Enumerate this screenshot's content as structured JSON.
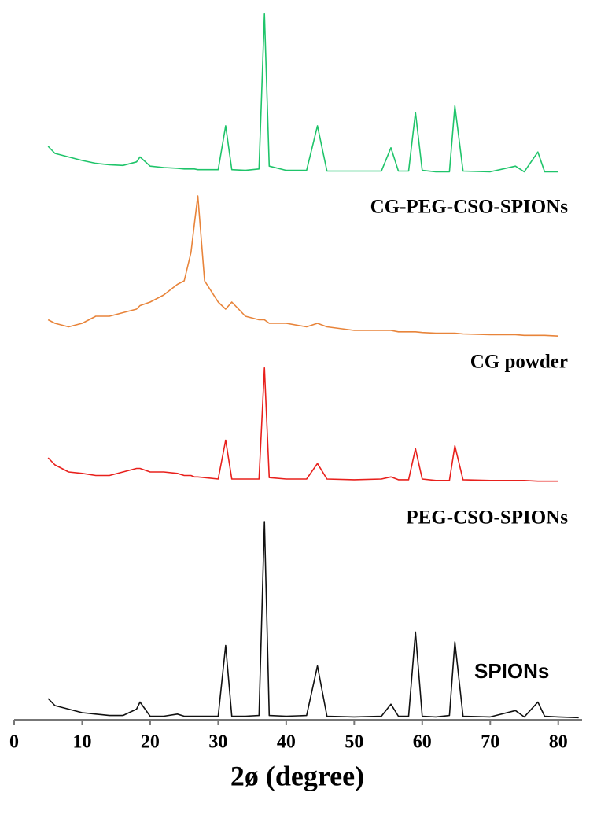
{
  "chart_data": {
    "type": "line",
    "xlabel": "2ø (degree)",
    "x": [
      5,
      6,
      8,
      10,
      12,
      14,
      16,
      18,
      18.5,
      20,
      22,
      24,
      25,
      26,
      26.5,
      27,
      28,
      30,
      31.1,
      32,
      34,
      36,
      36.8,
      37.5,
      40,
      43,
      44.6,
      46,
      50,
      54,
      55.4,
      56.5,
      58,
      59,
      60,
      62,
      64,
      64.8,
      66,
      70,
      73.7,
      75,
      77,
      78,
      80,
      83
    ],
    "xlim": [
      0,
      83.5
    ],
    "xticks": [
      0,
      10,
      20,
      30,
      40,
      50,
      60,
      70,
      80
    ],
    "ylim": [
      0,
      100
    ],
    "series": [
      {
        "name": "CG-PEG-CSO-SPIONs",
        "color": "#1fc46a",
        "values": [
          81,
          80,
          79.5,
          79,
          78.6,
          78.4,
          78.3,
          78.8,
          79.5,
          78.2,
          78,
          77.9,
          77.8,
          77.8,
          77.8,
          77.7,
          77.7,
          77.7,
          83.9,
          77.7,
          77.6,
          77.8,
          99.7,
          78.2,
          77.6,
          77.6,
          83.9,
          77.5,
          77.5,
          77.5,
          80.8,
          77.5,
          77.5,
          85.8,
          77.6,
          77.4,
          77.4,
          86.7,
          77.5,
          77.4,
          78.2,
          77.4,
          80.2,
          77.4,
          77.4,
          null
        ]
      },
      {
        "name": "CG powder",
        "color": "#e8843a",
        "values": [
          56.5,
          56,
          55.5,
          56,
          57,
          57,
          57.5,
          58,
          58.5,
          59,
          60,
          61.5,
          62,
          66,
          70,
          74,
          62,
          59,
          58,
          59,
          57,
          56.5,
          56.5,
          56,
          56,
          55.5,
          56,
          55.5,
          55,
          55,
          55,
          54.8,
          54.8,
          54.8,
          54.7,
          54.6,
          54.6,
          54.6,
          54.5,
          54.4,
          54.4,
          54.3,
          54.3,
          54.3,
          54.2,
          null
        ]
      },
      {
        "name": "PEG-CSO-SPIONs",
        "color": "#e8201c",
        "values": [
          37,
          36,
          35,
          34.8,
          34.5,
          34.5,
          35,
          35.5,
          35.5,
          35,
          35,
          34.8,
          34.5,
          34.5,
          34.3,
          34.3,
          34.2,
          34,
          39.5,
          34,
          34,
          34,
          49.7,
          34.2,
          34,
          34,
          36.2,
          34,
          33.9,
          34,
          34.3,
          33.9,
          33.9,
          38.3,
          34,
          33.8,
          33.8,
          38.7,
          33.9,
          33.8,
          33.8,
          33.8,
          33.7,
          33.7,
          33.7,
          null
        ]
      },
      {
        "name": "SPIONs",
        "color": "#111111",
        "values": [
          3,
          2,
          1.5,
          1,
          0.8,
          0.6,
          0.6,
          1.5,
          2.5,
          0.5,
          0.5,
          0.8,
          0.5,
          0.5,
          0.5,
          0.5,
          0.5,
          0.5,
          10.5,
          0.5,
          0.5,
          0.6,
          28,
          0.6,
          0.5,
          0.6,
          7.6,
          0.5,
          0.4,
          0.5,
          2.2,
          0.5,
          0.5,
          12.4,
          0.5,
          0.4,
          0.6,
          11,
          0.5,
          0.4,
          1.3,
          0.4,
          2.5,
          0.5,
          0.4,
          0.3
        ]
      }
    ]
  }
}
